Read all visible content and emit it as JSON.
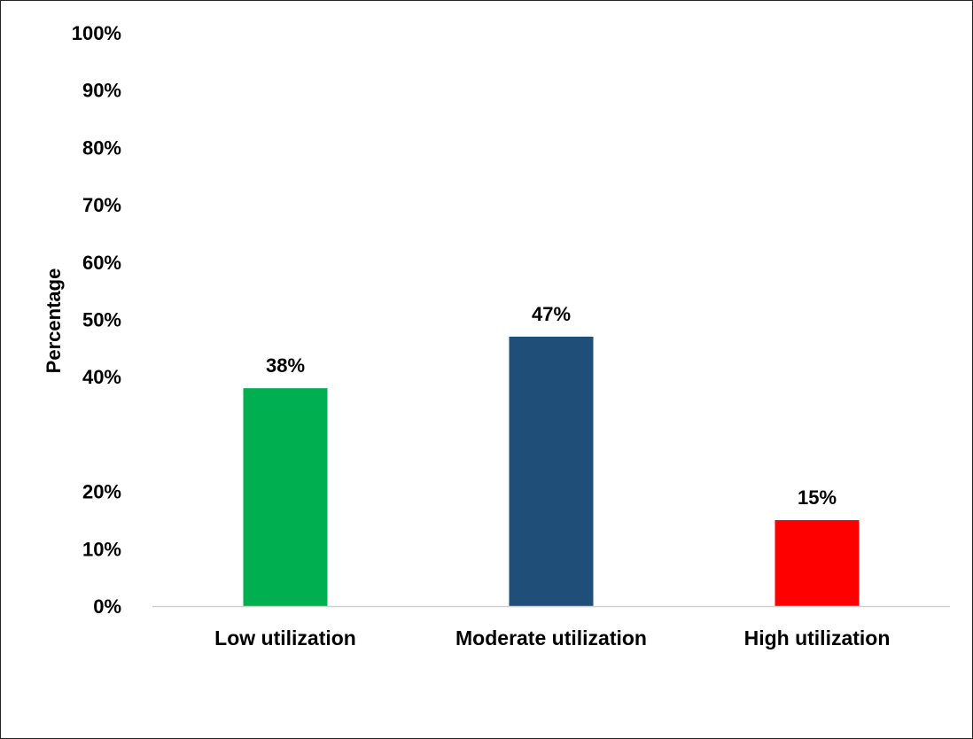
{
  "chart_data": {
    "type": "bar",
    "title": "",
    "xlabel": "",
    "ylabel": "Percentage",
    "ylim": [
      0,
      100
    ],
    "y_ticks": [
      {
        "label": "100%",
        "value": 100
      },
      {
        "label": "90%",
        "value": 90
      },
      {
        "label": "80%",
        "value": 80
      },
      {
        "label": "70%",
        "value": 70
      },
      {
        "label": "60%",
        "value": 60
      },
      {
        "label": "50%",
        "value": 50
      },
      {
        "label": "40%",
        "value": 40
      },
      {
        "label": "20%",
        "value": 20
      },
      {
        "label": "10%",
        "value": 10
      },
      {
        "label": "0%",
        "value": 0
      }
    ],
    "categories": [
      "Low utilization",
      "Moderate utilization",
      "High utilization"
    ],
    "values": [
      38,
      47,
      15
    ],
    "data_labels": [
      "38%",
      "47%",
      "15%"
    ],
    "colors": [
      "#00b050",
      "#1f4e79",
      "#ff0000"
    ],
    "grid": false,
    "legend": "none"
  }
}
